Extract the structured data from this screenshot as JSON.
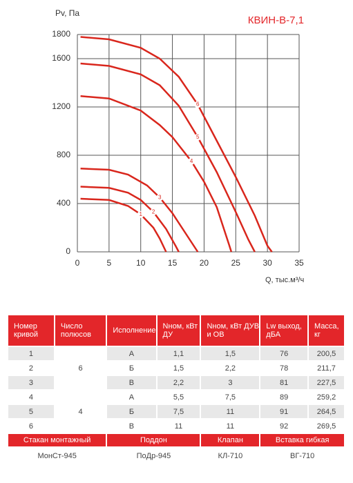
{
  "chart_data": {
    "type": "line",
    "title": "КВИН-В-7,1",
    "y_label": "Pv, Па",
    "x_label": "Q, тыс.м³/ч",
    "xlim": [
      0,
      35
    ],
    "ylim": [
      0,
      1800
    ],
    "xticks": [
      0,
      5,
      10,
      15,
      20,
      25,
      30,
      35
    ],
    "yticks": [
      0,
      400,
      800,
      1200,
      1600,
      1800
    ],
    "grid": true,
    "series": [
      {
        "name": "1",
        "color": "#d9261c",
        "x": [
          0.5,
          5,
          8,
          10,
          12,
          13,
          14
        ],
        "values": [
          440,
          430,
          380,
          310,
          200,
          110,
          0
        ]
      },
      {
        "name": "2",
        "color": "#d9261c",
        "x": [
          0.5,
          5,
          8,
          10,
          12,
          14,
          15.5,
          16
        ],
        "values": [
          540,
          530,
          490,
          430,
          330,
          190,
          50,
          0
        ]
      },
      {
        "name": "3",
        "color": "#d9261c",
        "x": [
          0.5,
          5,
          8,
          11,
          13,
          15,
          17,
          19
        ],
        "values": [
          690,
          680,
          640,
          550,
          450,
          320,
          160,
          0
        ]
      },
      {
        "name": "4",
        "color": "#d9261c",
        "x": [
          0.5,
          5,
          10,
          13,
          15,
          18,
          20,
          22,
          24,
          24.3
        ],
        "values": [
          1290,
          1270,
          1170,
          1050,
          950,
          750,
          580,
          370,
          50,
          0
        ]
      },
      {
        "name": "5",
        "color": "#d9261c",
        "x": [
          0.5,
          5,
          10,
          13,
          16,
          19,
          22,
          25,
          27,
          28
        ],
        "values": [
          1560,
          1540,
          1470,
          1380,
          1210,
          950,
          660,
          330,
          100,
          0
        ]
      },
      {
        "name": "6",
        "color": "#d9261c",
        "x": [
          0.5,
          5,
          10,
          13,
          16,
          19,
          22,
          25,
          28,
          30,
          30.7
        ],
        "values": [
          1780,
          1760,
          1690,
          1600,
          1450,
          1220,
          920,
          620,
          300,
          50,
          0
        ]
      }
    ]
  },
  "table": {
    "header": [
      "Номер кривой",
      "Число полюсов",
      "Исполнение",
      "Nном, кВт ДУ",
      "Nном, кВт ДУВ и ОВ",
      "Lw выход, дБА",
      "Масса, кг"
    ],
    "groups": [
      {
        "poles": "6",
        "rows": [
          [
            "1",
            "А",
            "1,1",
            "1,5",
            "76",
            "200,5"
          ],
          [
            "2",
            "Б",
            "1,5",
            "2,2",
            "78",
            "211,7"
          ],
          [
            "3",
            "В",
            "2,2",
            "3",
            "81",
            "227,5"
          ]
        ]
      },
      {
        "poles": "4",
        "rows": [
          [
            "4",
            "А",
            "5,5",
            "7,5",
            "89",
            "259,2"
          ],
          [
            "5",
            "Б",
            "7,5",
            "11",
            "91",
            "264,5"
          ],
          [
            "6",
            "В",
            "11",
            "11",
            "92",
            "269,5"
          ]
        ]
      }
    ]
  },
  "accessories": {
    "header": [
      "Стакан монтажный",
      "Поддон",
      "Клапан",
      "Вставка гибкая"
    ],
    "values": [
      "МонСт-945",
      "ПоДр-945",
      "КЛ-710",
      "ВГ-710"
    ]
  }
}
